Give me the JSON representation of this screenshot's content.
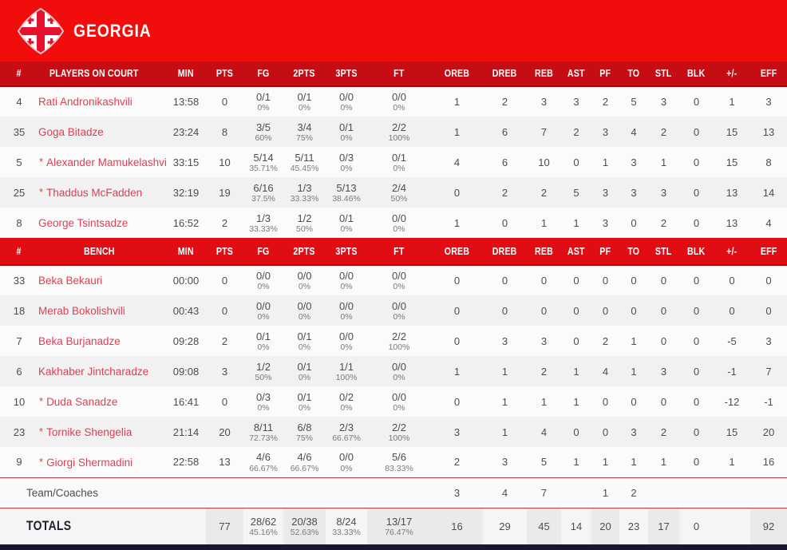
{
  "team": {
    "name": "GEORGIA"
  },
  "colors": {
    "banner_red": "#F20D0D",
    "oncourt_header_red": "#C60D13",
    "bench_header_red": "#E00E14",
    "player_name_red": "#E03E53",
    "totals_text_navy": "#1D2130",
    "bottom_bar_navy": "#17172F",
    "flag_cross_red": "#E8112D"
  },
  "table": {
    "oncourt_header": [
      "#",
      "PLAYERS ON COURT",
      "MIN",
      "PTS",
      "FG",
      "2PTS",
      "3PTS",
      "FT",
      "OREB",
      "DREB",
      "REB",
      "AST",
      "PF",
      "TO",
      "STL",
      "BLK",
      "+/-",
      "EFF"
    ],
    "bench_header": [
      "#",
      "BENCH",
      "MIN",
      "PTS",
      "FG",
      "2PTS",
      "3PTS",
      "FT",
      "OREB",
      "DREB",
      "REB",
      "AST",
      "PF",
      "TO",
      "STL",
      "BLK",
      "+/-",
      "EFF"
    ],
    "players_on_court": [
      {
        "num": "4",
        "starter": false,
        "name": "Rati Andronikashvili",
        "min": "13:58",
        "pts": "0",
        "fg": [
          "0/1",
          "0%"
        ],
        "p2": [
          "0/1",
          "0%"
        ],
        "p3": [
          "0/0",
          "0%"
        ],
        "ft": [
          "0/0",
          "0%"
        ],
        "stats": [
          "1",
          "2",
          "3",
          "3",
          "2",
          "5",
          "3",
          "0",
          "1",
          "3"
        ]
      },
      {
        "num": "35",
        "starter": false,
        "name": "Goga Bitadze",
        "min": "23:24",
        "pts": "8",
        "fg": [
          "3/5",
          "60%"
        ],
        "p2": [
          "3/4",
          "75%"
        ],
        "p3": [
          "0/1",
          "0%"
        ],
        "ft": [
          "2/2",
          "100%"
        ],
        "stats": [
          "1",
          "6",
          "7",
          "2",
          "3",
          "4",
          "2",
          "0",
          "15",
          "13"
        ]
      },
      {
        "num": "5",
        "starter": true,
        "name": "Alexander Mamukelashvili",
        "min": "33:15",
        "pts": "10",
        "fg": [
          "5/14",
          "35.71%"
        ],
        "p2": [
          "5/11",
          "45.45%"
        ],
        "p3": [
          "0/3",
          "0%"
        ],
        "ft": [
          "0/1",
          "0%"
        ],
        "stats": [
          "4",
          "6",
          "10",
          "0",
          "1",
          "3",
          "1",
          "0",
          "15",
          "8"
        ]
      },
      {
        "num": "25",
        "starter": true,
        "name": "Thaddus McFadden",
        "min": "32:19",
        "pts": "19",
        "fg": [
          "6/16",
          "37.5%"
        ],
        "p2": [
          "1/3",
          "33.33%"
        ],
        "p3": [
          "5/13",
          "38.46%"
        ],
        "ft": [
          "2/4",
          "50%"
        ],
        "stats": [
          "0",
          "2",
          "2",
          "5",
          "3",
          "3",
          "3",
          "0",
          "13",
          "14"
        ]
      },
      {
        "num": "8",
        "starter": false,
        "name": "George Tsintsadze",
        "min": "16:52",
        "pts": "2",
        "fg": [
          "1/3",
          "33.33%"
        ],
        "p2": [
          "1/2",
          "50%"
        ],
        "p3": [
          "0/1",
          "0%"
        ],
        "ft": [
          "0/0",
          "0%"
        ],
        "stats": [
          "1",
          "0",
          "1",
          "1",
          "3",
          "0",
          "2",
          "0",
          "13",
          "4"
        ]
      }
    ],
    "bench": [
      {
        "num": "33",
        "starter": false,
        "name": "Beka Bekauri",
        "min": "00:00",
        "pts": "0",
        "fg": [
          "0/0",
          "0%"
        ],
        "p2": [
          "0/0",
          "0%"
        ],
        "p3": [
          "0/0",
          "0%"
        ],
        "ft": [
          "0/0",
          "0%"
        ],
        "stats": [
          "0",
          "0",
          "0",
          "0",
          "0",
          "0",
          "0",
          "0",
          "0",
          "0"
        ]
      },
      {
        "num": "18",
        "starter": false,
        "name": "Merab Bokolishvili",
        "min": "00:43",
        "pts": "0",
        "fg": [
          "0/0",
          "0%"
        ],
        "p2": [
          "0/0",
          "0%"
        ],
        "p3": [
          "0/0",
          "0%"
        ],
        "ft": [
          "0/0",
          "0%"
        ],
        "stats": [
          "0",
          "0",
          "0",
          "0",
          "0",
          "0",
          "0",
          "0",
          "0",
          "0"
        ]
      },
      {
        "num": "7",
        "starter": false,
        "name": "Beka Burjanadze",
        "min": "09:28",
        "pts": "2",
        "fg": [
          "0/1",
          "0%"
        ],
        "p2": [
          "0/1",
          "0%"
        ],
        "p3": [
          "0/0",
          "0%"
        ],
        "ft": [
          "2/2",
          "100%"
        ],
        "stats": [
          "0",
          "3",
          "3",
          "0",
          "2",
          "1",
          "0",
          "0",
          "-5",
          "3"
        ]
      },
      {
        "num": "6",
        "starter": false,
        "name": "Kakhaber Jintcharadze",
        "min": "09:08",
        "pts": "3",
        "fg": [
          "1/2",
          "50%"
        ],
        "p2": [
          "0/1",
          "0%"
        ],
        "p3": [
          "1/1",
          "100%"
        ],
        "ft": [
          "0/0",
          "0%"
        ],
        "stats": [
          "1",
          "1",
          "2",
          "1",
          "4",
          "1",
          "3",
          "0",
          "-1",
          "7"
        ]
      },
      {
        "num": "10",
        "starter": true,
        "name": "Duda Sanadze",
        "min": "16:41",
        "pts": "0",
        "fg": [
          "0/3",
          "0%"
        ],
        "p2": [
          "0/1",
          "0%"
        ],
        "p3": [
          "0/2",
          "0%"
        ],
        "ft": [
          "0/0",
          "0%"
        ],
        "stats": [
          "0",
          "1",
          "1",
          "1",
          "0",
          "0",
          "0",
          "0",
          "-12",
          "-1"
        ]
      },
      {
        "num": "23",
        "starter": true,
        "name": "Tornike Shengelia",
        "min": "21:14",
        "pts": "20",
        "fg": [
          "8/11",
          "72.73%"
        ],
        "p2": [
          "6/8",
          "75%"
        ],
        "p3": [
          "2/3",
          "66.67%"
        ],
        "ft": [
          "2/2",
          "100%"
        ],
        "stats": [
          "3",
          "1",
          "4",
          "0",
          "0",
          "3",
          "2",
          "0",
          "15",
          "20"
        ]
      },
      {
        "num": "9",
        "starter": true,
        "name": "Giorgi Shermadini",
        "min": "22:58",
        "pts": "13",
        "fg": [
          "4/6",
          "66.67%"
        ],
        "p2": [
          "4/6",
          "66.67%"
        ],
        "p3": [
          "0/0",
          "0%"
        ],
        "ft": [
          "5/6",
          "83.33%"
        ],
        "stats": [
          "2",
          "3",
          "5",
          "1",
          "1",
          "1",
          "1",
          "0",
          "1",
          "16"
        ]
      }
    ],
    "team_coaches": {
      "label": "Team/Coaches",
      "stats": [
        "3",
        "4",
        "7",
        "",
        "1",
        "2",
        "",
        "",
        "",
        ""
      ]
    },
    "totals": {
      "label": "TOTALS",
      "min": "",
      "pts": "77",
      "fg": [
        "28/62",
        "45.16%"
      ],
      "p2": [
        "20/38",
        "52.63%"
      ],
      "p3": [
        "8/24",
        "33.33%"
      ],
      "ft": [
        "13/17",
        "76.47%"
      ],
      "stats": [
        "16",
        "29",
        "45",
        "14",
        "20",
        "23",
        "17",
        "0",
        "",
        "92"
      ]
    }
  }
}
